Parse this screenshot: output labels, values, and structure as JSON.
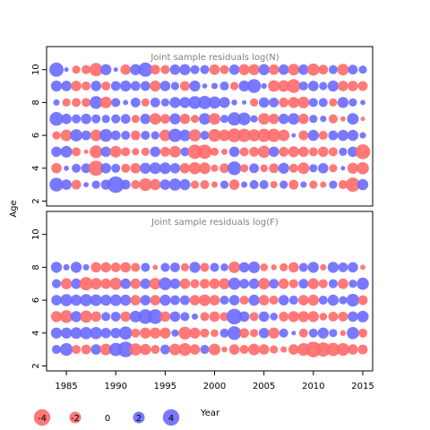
{
  "chart_data": {
    "type": "scatter",
    "bubble": true,
    "ylabel": "Age",
    "x_ticks": [
      1985,
      1990,
      1995,
      2000,
      2005,
      2010,
      2015
    ],
    "xlim": [
      1983,
      2016
    ],
    "ylim": [
      1.7,
      11.4
    ],
    "y_ticks": [
      2,
      4,
      6,
      8,
      10
    ],
    "colors": {
      "negative": "#ff6a6a",
      "positive": "#6a6aff",
      "frame": "#000000",
      "title": "#808080"
    },
    "panels": [
      {
        "title": "Joint sample residuals log(N)",
        "x_tick_labels_shown": false,
        "ages": [
          3,
          4,
          5,
          6,
          7,
          8,
          9,
          10
        ],
        "years": [
          1984,
          1985,
          1986,
          1987,
          1988,
          1989,
          1990,
          1991,
          1992,
          1993,
          1994,
          1995,
          1996,
          1997,
          1998,
          1999,
          2000,
          2001,
          2002,
          2003,
          2004,
          2005,
          2006,
          2007,
          2008,
          2009,
          2010,
          2011,
          2012,
          2013,
          2014,
          2015
        ],
        "residuals": [
          [
            2.8,
            1.6,
            -1.4,
            0.4,
            1.0,
            1.5,
            4.0,
            1.4,
            -1.2,
            -2.4,
            -1.8,
            1.6,
            2.2,
            1.8,
            -1.0,
            -1.2,
            -0.6,
            1.0,
            -1.6,
            0.6,
            1.2,
            1.2,
            -0.8,
            1.0,
            -1.4,
            0.6,
            -1.0,
            -0.6,
            1.0,
            -1.2,
            -3.0,
            1.8
          ],
          [
            -1.6,
            0.4,
            1.2,
            1.4,
            -3.4,
            1.6,
            1.2,
            -1.2,
            -1.6,
            1.8,
            2.0,
            2.0,
            1.6,
            -1.6,
            -2.2,
            -2.0,
            -0.8,
            -1.4,
            2.8,
            -1.0,
            1.4,
            -0.9,
            -1.4,
            1.8,
            -1.2,
            -2.0,
            1.0,
            1.6,
            -1.0,
            0.3,
            -1.8,
            -2.2
          ],
          [
            1.6,
            2.0,
            -1.2,
            -0.3,
            -2.4,
            1.6,
            -2.0,
            -1.2,
            -0.8,
            -1.0,
            1.6,
            -1.4,
            -2.0,
            1.2,
            -3.0,
            -3.0,
            -1.0,
            -0.6,
            1.6,
            -1.2,
            -1.4,
            -2.2,
            1.6,
            -1.4,
            -1.8,
            -1.6,
            -1.2,
            -1.6,
            -1.2,
            1.0,
            1.6,
            -3.2
          ],
          [
            -1.0,
            -2.0,
            2.2,
            1.4,
            -2.0,
            2.4,
            1.4,
            1.2,
            -1.4,
            1.2,
            1.0,
            -2.0,
            2.6,
            2.0,
            -2.2,
            1.2,
            -2.4,
            -2.0,
            -2.8,
            -2.6,
            -2.2,
            -2.6,
            -2.6,
            -2.0,
            0.3,
            -1.4,
            1.8,
            -1.2,
            1.4,
            1.8,
            1.8,
            0.6
          ],
          [
            2.8,
            1.6,
            1.2,
            1.6,
            1.2,
            1.0,
            1.2,
            1.4,
            -1.0,
            1.6,
            -2.0,
            -1.4,
            1.8,
            -1.6,
            -1.0,
            2.0,
            -2.0,
            1.0,
            2.6,
            2.4,
            0.8,
            -2.0,
            -1.6,
            1.6,
            2.0,
            -1.6,
            1.0,
            0.6,
            -1.2,
            -0.4,
            2.0,
            -0.3
          ],
          [
            0.6,
            -1.0,
            -1.2,
            -1.2,
            2.4,
            -2.0,
            1.2,
            0.4,
            1.4,
            -1.0,
            1.4,
            1.0,
            1.8,
            1.8,
            2.4,
            2.6,
            2.2,
            1.8,
            0.5,
            0.3,
            -1.0,
            1.6,
            1.4,
            -1.4,
            -1.8,
            -2.0,
            1.2,
            1.2,
            -1.0,
            1.8,
            1.0,
            0.4
          ],
          [
            1.8,
            1.6,
            -1.6,
            -1.2,
            1.6,
            -1.2,
            1.4,
            1.8,
            1.4,
            1.4,
            -1.8,
            1.6,
            1.0,
            -1.4,
            1.8,
            0.4,
            0.6,
            1.2,
            -1.0,
            1.8,
            2.8,
            0.5,
            -2.0,
            -2.0,
            -2.8,
            1.2,
            1.6,
            1.0,
            1.8,
            -1.6,
            -1.6,
            -1.4
          ],
          [
            3.0,
            0.3,
            -1.0,
            -1.2,
            -2.6,
            1.8,
            0.3,
            -1.6,
            1.8,
            3.0,
            -1.4,
            -1.2,
            1.6,
            1.8,
            1.2,
            1.2,
            -1.6,
            -1.2,
            1.6,
            -1.8,
            -1.8,
            1.8,
            -1.6,
            1.6,
            -2.0,
            1.6,
            -2.2,
            -1.4,
            1.2,
            -2.0,
            1.4,
            1.0
          ]
        ]
      },
      {
        "title": "Joint sample residuals log(F)",
        "x_tick_labels_shown": true,
        "ages": [
          3,
          4,
          5,
          6,
          7,
          8
        ],
        "years": [
          1984,
          1985,
          1986,
          1987,
          1988,
          1989,
          1990,
          1991,
          1992,
          1993,
          1994,
          1995,
          1996,
          1997,
          1998,
          1999,
          2000,
          2001,
          2002,
          2003,
          2004,
          2005,
          2006,
          2007,
          2008,
          2009,
          2010,
          2011,
          2012,
          2013,
          2014,
          2015
        ],
        "residuals": [
          [
            1.2,
            2.4,
            -1.2,
            -1.4,
            1.6,
            -2.0,
            2.6,
            3.6,
            -2.2,
            -1.8,
            -1.2,
            1.4,
            -2.0,
            -2.4,
            -1.6,
            1.2,
            -2.0,
            -0.5,
            -1.6,
            -1.2,
            -2.0,
            -1.6,
            -1.0,
            -0.6,
            -1.6,
            -2.4,
            -3.6,
            -3.0,
            -2.6,
            -2.4,
            -1.6,
            -1.4
          ],
          [
            1.8,
            1.8,
            2.0,
            2.2,
            2.2,
            1.6,
            1.6,
            2.6,
            -1.2,
            -1.8,
            -1.8,
            -1.8,
            0.8,
            -2.4,
            -1.8,
            -1.2,
            -0.9,
            1.2,
            2.8,
            -1.4,
            -1.0,
            1.6,
            -1.8,
            1.2,
            0.3,
            -1.2,
            1.2,
            1.8,
            1.0,
            -0.5,
            2.2,
            -1.2
          ],
          [
            -1.8,
            -2.4,
            1.8,
            -2.2,
            -1.6,
            1.2,
            1.4,
            -1.6,
            2.0,
            3.2,
            3.2,
            -1.6,
            1.6,
            1.2,
            0.6,
            -1.2,
            -1.6,
            -1.2,
            3.6,
            1.6,
            -1.2,
            1.6,
            0.9,
            -1.4,
            -1.8,
            -1.8,
            -1.8,
            -0.9,
            -1.4,
            -1.4,
            1.6,
            2.0
          ],
          [
            1.6,
            2.2,
            1.8,
            2.2,
            2.0,
            1.8,
            2.0,
            1.8,
            -1.6,
            1.6,
            -1.6,
            1.8,
            1.4,
            1.4,
            -1.6,
            -2.0,
            -1.6,
            1.2,
            1.6,
            -1.2,
            1.8,
            -1.6,
            -1.2,
            1.6,
            1.2,
            -1.6,
            -1.8,
            1.2,
            1.8,
            1.0,
            2.4,
            -1.4
          ],
          [
            1.2,
            -1.8,
            1.6,
            -2.6,
            -2.0,
            -1.6,
            -2.2,
            1.6,
            -1.6,
            1.6,
            -2.0,
            2.4,
            1.6,
            -1.6,
            -1.2,
            -1.4,
            -1.6,
            -1.8,
            2.2,
            1.4,
            1.6,
            -2.0,
            1.4,
            -1.6,
            -1.2,
            1.4,
            -1.8,
            -1.2,
            1.2,
            -1.6,
            1.0,
            2.2
          ],
          [
            1.8,
            0.6,
            1.8,
            0.6,
            -1.6,
            -1.6,
            -1.4,
            -1.6,
            -1.2,
            1.2,
            -0.4,
            1.2,
            1.4,
            -1.0,
            1.8,
            -1.2,
            1.2,
            0.9,
            -2.0,
            1.6,
            2.0,
            -0.9,
            -0.5,
            -1.0,
            -1.6,
            1.2,
            1.8,
            -0.6,
            1.8,
            1.4,
            1.6,
            -0.4
          ]
        ]
      }
    ],
    "legend": {
      "entries": [
        "-4",
        "-2",
        "0",
        "2",
        "4"
      ],
      "values": [
        -4,
        -2,
        0,
        2,
        4
      ],
      "title": "Year"
    }
  }
}
